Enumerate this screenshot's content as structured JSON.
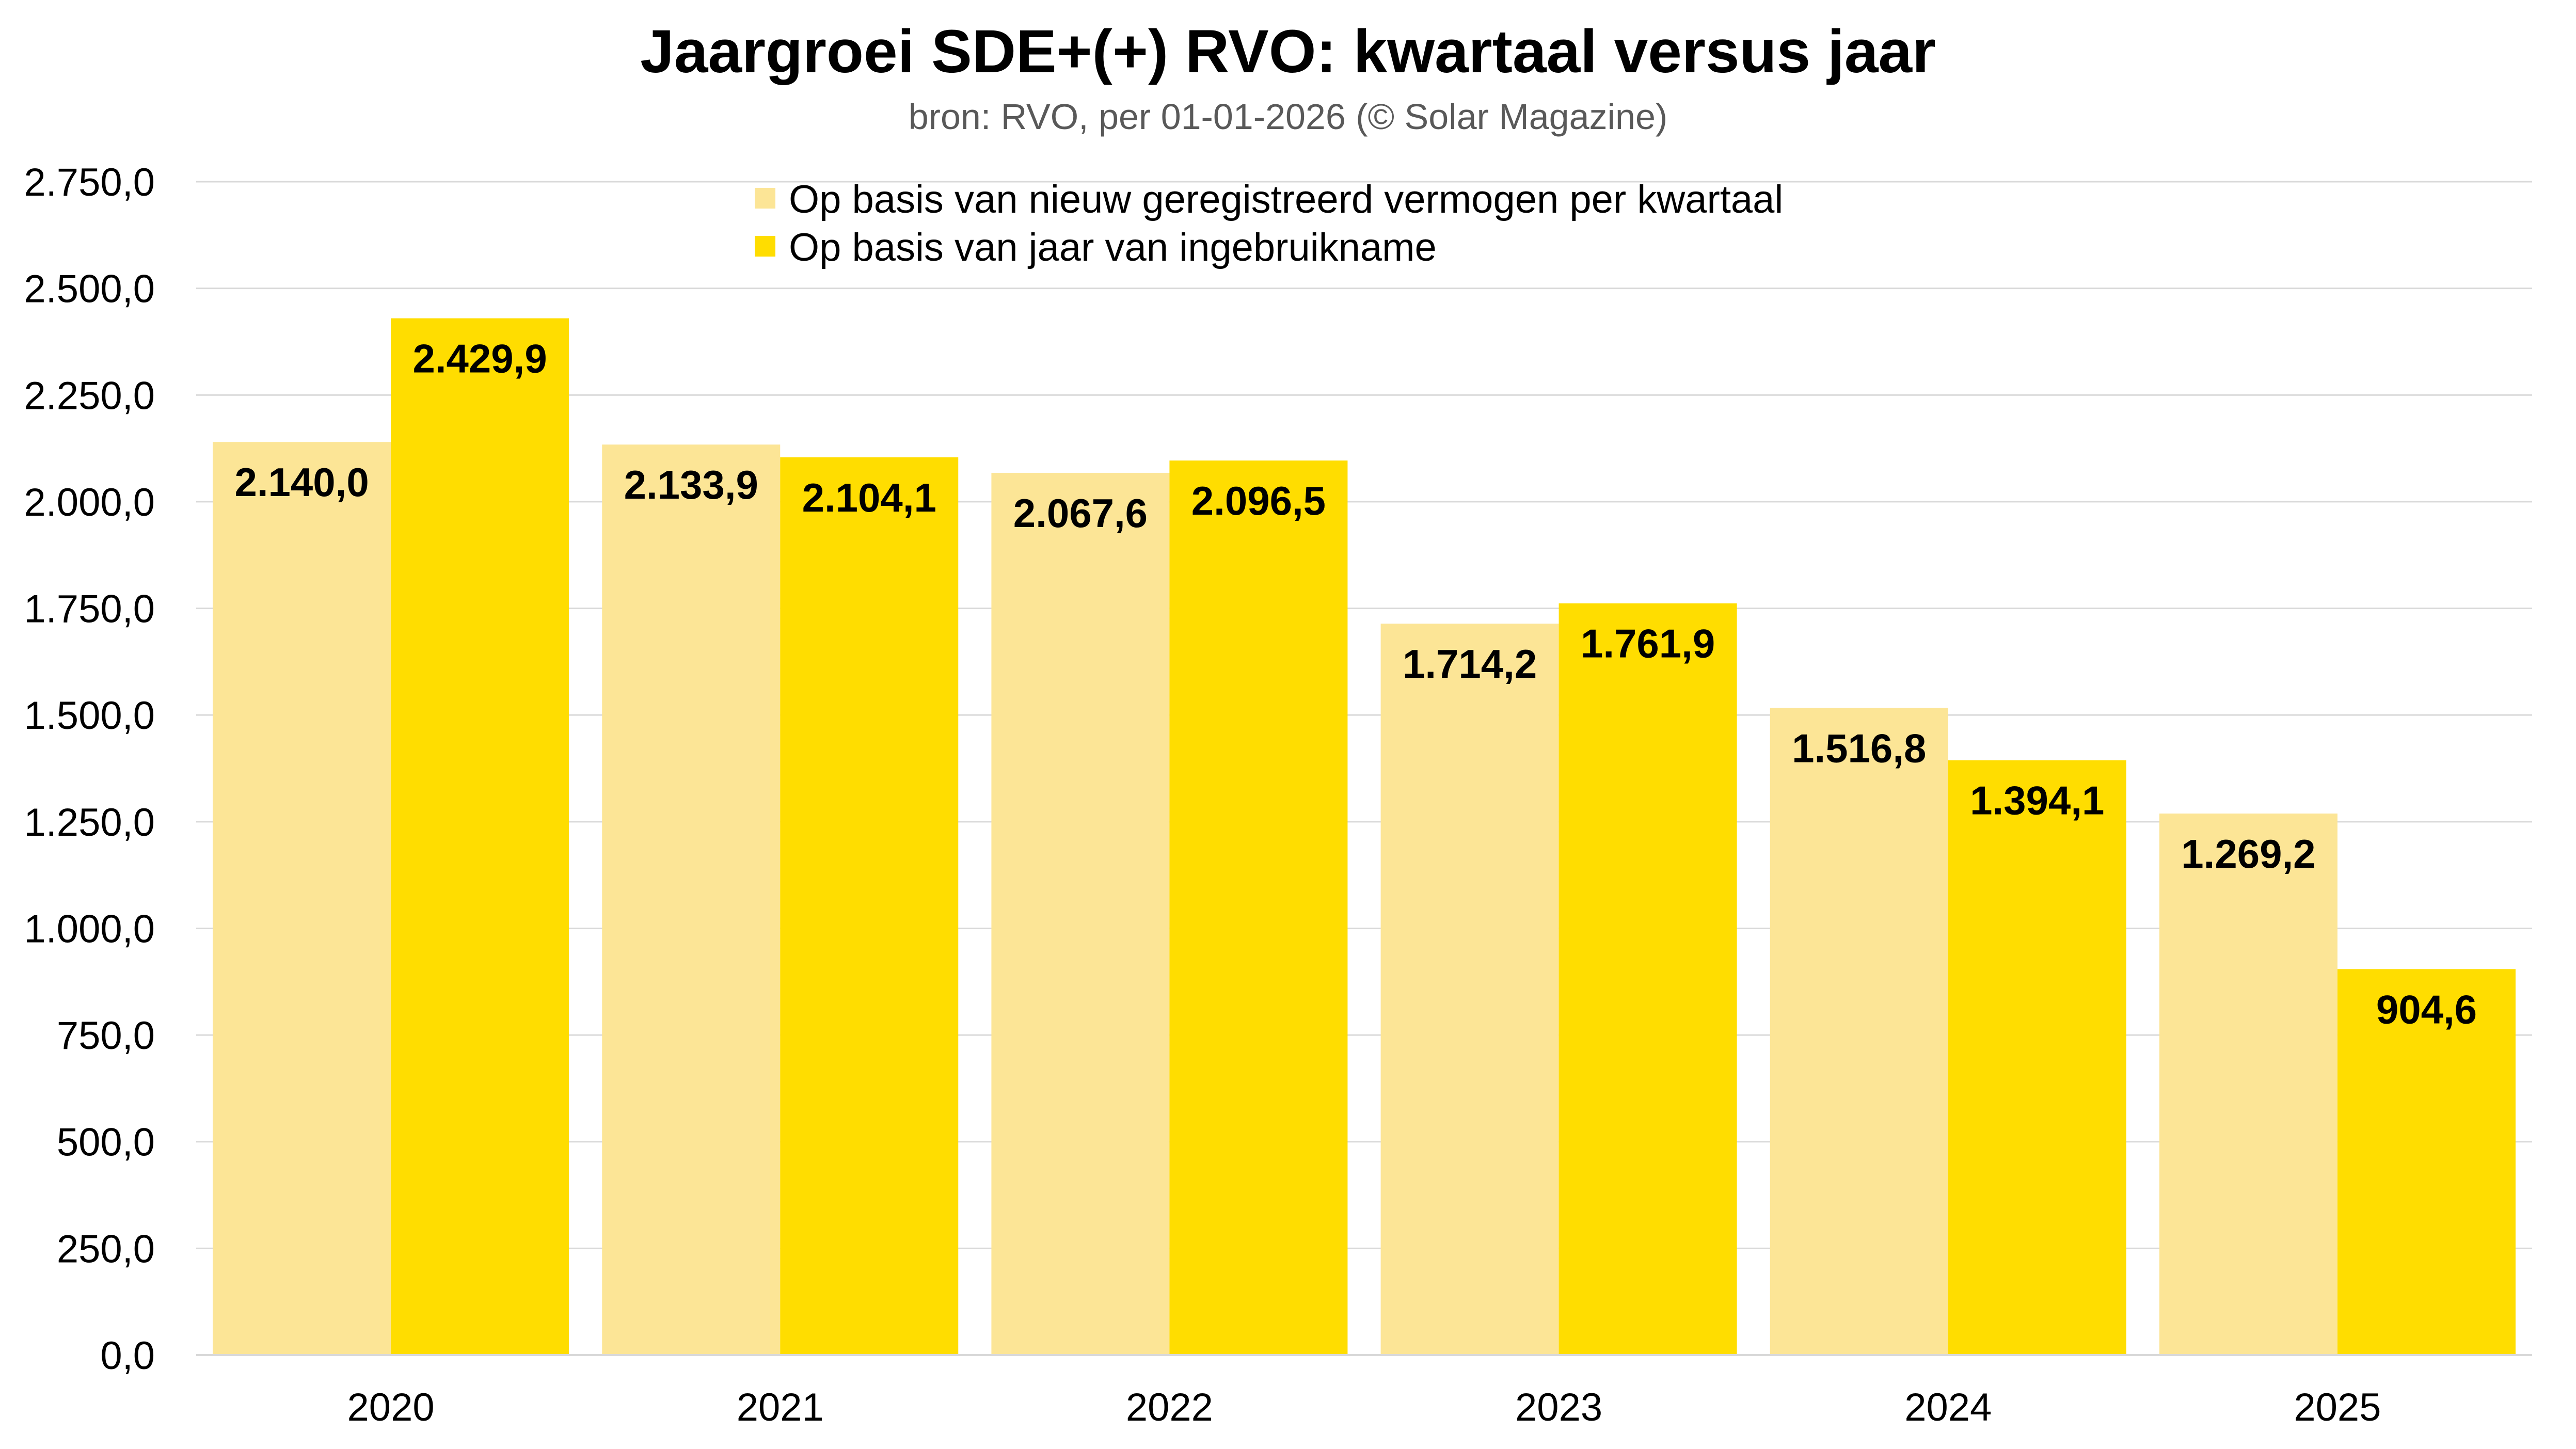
{
  "chart_data": {
    "type": "bar",
    "title": "Jaargroei SDE+(+) RVO: kwartaal versus jaar",
    "subtitle": "bron: RVO, per 01-01-2026 (© Solar Magazine)",
    "categories": [
      "2020",
      "2021",
      "2022",
      "2023",
      "2024",
      "2025"
    ],
    "series": [
      {
        "name": "Op basis van nieuw geregistreerd vermogen per kwartaal",
        "color": "#FCE596",
        "values": [
          2140.0,
          2133.9,
          2067.6,
          1714.2,
          1516.8,
          1269.2
        ],
        "labels": [
          "2.140,0",
          "2.133,9",
          "2.067,6",
          "1.714,2",
          "1.516,8",
          "1.269,2"
        ]
      },
      {
        "name": "Op basis van jaar van ingebruikname",
        "color": "#FFDD00",
        "values": [
          2429.9,
          2104.1,
          2096.5,
          1761.9,
          1394.1,
          904.6
        ],
        "labels": [
          "2.429,9",
          "2.104,1",
          "2.096,5",
          "1.761,9",
          "1.394,1",
          "904,6"
        ]
      }
    ],
    "ylim": [
      0,
      2750
    ],
    "ytick_values": [
      0,
      250,
      500,
      750,
      1000,
      1250,
      1500,
      1750,
      2000,
      2250,
      2500,
      2750
    ],
    "ytick_labels": [
      "0,0",
      "250,0",
      "500,0",
      "750,0",
      "1.000,0",
      "1.250,0",
      "1.500,0",
      "1.750,0",
      "2.000,0",
      "2.250,0",
      "2.500,0",
      "2.750,0"
    ],
    "grid": true,
    "legend_position": "top-center",
    "xlabel": "",
    "ylabel": ""
  }
}
